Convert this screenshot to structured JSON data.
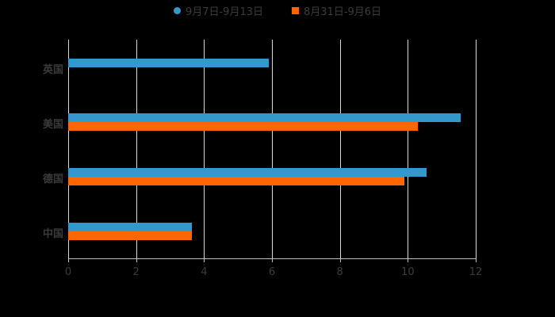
{
  "legend": [
    {
      "label": "9月7日-9月13日",
      "color": "#3399cc",
      "shape": "circle"
    },
    {
      "label": "8月31日-9月6日",
      "color": "#ff6600",
      "shape": "square"
    }
  ],
  "chart_data": {
    "type": "bar",
    "orientation": "horizontal",
    "title": "",
    "xlabel": "",
    "ylabel": "",
    "categories": [
      "英国",
      "美国",
      "德国",
      "中国"
    ],
    "series": [
      {
        "name": "9月7日-9月13日",
        "color": "#3399cc",
        "values": [
          5.9,
          11.55,
          10.55,
          3.65
        ]
      },
      {
        "name": "8月31日-9月6日",
        "color": "#ff6600",
        "values": [
          null,
          10.3,
          9.9,
          3.65
        ]
      }
    ],
    "xlim": [
      0,
      12
    ],
    "xticks": [
      "0",
      "2",
      "4",
      "6",
      "8",
      "10",
      "12"
    ],
    "grid": "vertical",
    "legend_position": "top"
  }
}
